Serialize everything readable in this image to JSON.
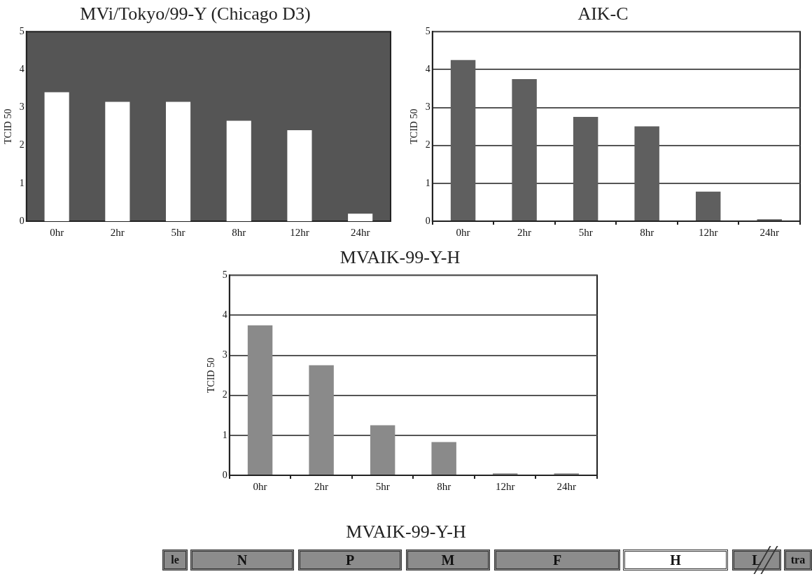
{
  "chart_data": [
    {
      "type": "bar",
      "title": "MVi/Tokyo/99-Y (Chicago D3)",
      "ylabel": "TCID 50",
      "categories": [
        "0hr",
        "2hr",
        "5hr",
        "8hr",
        "12hr",
        "24hr"
      ],
      "values": [
        3.4,
        3.15,
        3.15,
        2.65,
        2.4,
        0.2
      ],
      "color": "#ffffff",
      "ylim": [
        0,
        5
      ],
      "yticks": [
        0,
        1,
        2,
        3,
        4,
        5
      ],
      "grid": false
    },
    {
      "type": "bar",
      "title": "AIK-C",
      "ylabel": "TCID 50",
      "categories": [
        "0hr",
        "2hr",
        "5hr",
        "8hr",
        "12hr",
        "24hr"
      ],
      "values": [
        4.25,
        3.75,
        2.75,
        2.5,
        0.78,
        0.05
      ],
      "color": "#5f5f5f",
      "ylim": [
        0,
        5
      ],
      "yticks": [
        0,
        1,
        2,
        3,
        4,
        5
      ],
      "grid": "y"
    },
    {
      "type": "bar",
      "title": "MVAIK-99-Y-H",
      "ylabel": "TCID 50",
      "categories": [
        "0hr",
        "2hr",
        "5hr",
        "8hr",
        "12hr",
        "24hr"
      ],
      "values": [
        3.75,
        2.75,
        1.25,
        0.83,
        0.05,
        0.05
      ],
      "color": "#8a8a8a",
      "ylim": [
        0,
        5
      ],
      "yticks": [
        0,
        1,
        2,
        3,
        4,
        5
      ],
      "grid": "y"
    },
    {
      "type": "other",
      "title": "MVAIK-99-Y-H",
      "annotations": [
        "le",
        "N",
        "P",
        "M",
        "F",
        "H",
        "L",
        "tra"
      ]
    }
  ]
}
